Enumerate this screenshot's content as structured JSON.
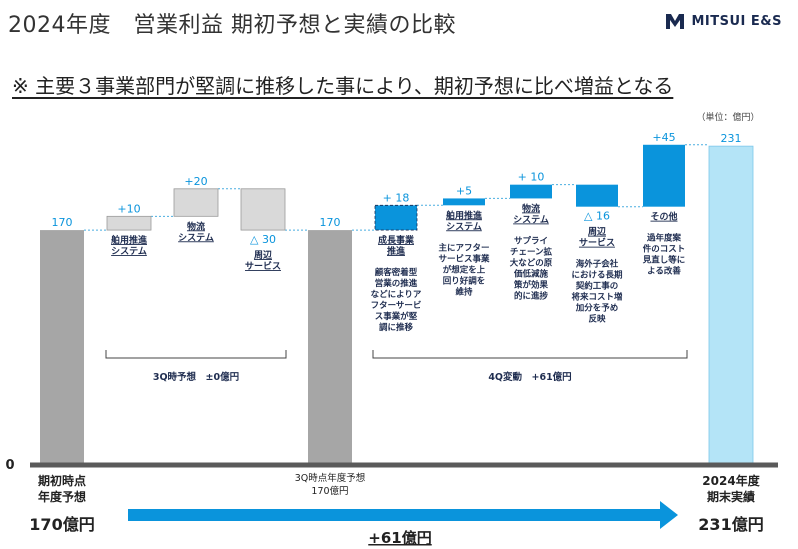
{
  "header": {
    "title": "2024年度　営業利益 期初予想と実績の比較",
    "logo_text": "MITSUI E&S",
    "subtitle": "※ 主要３事業部門が堅調に推移した事により、期初予想に比べ増益となる"
  },
  "colors": {
    "total_bar": "#a6a6a6",
    "final_bar": "#b4e4f7",
    "pos_3q": "#d9d9d9",
    "neg_3q": "#d9d9d9",
    "bar_4q": "#0a94dc",
    "value_text": "#0a94dc",
    "axis": "#5a5a5a",
    "arrow": "#0a94dc"
  },
  "chart_data": {
    "type": "waterfall",
    "unit": "（単位：億円）",
    "ylim": [
      0,
      240
    ],
    "zero_label": "0",
    "bars": [
      {
        "id": "start",
        "kind": "total",
        "value": 170,
        "label": "170"
      },
      {
        "id": "ship",
        "kind": "delta",
        "phase": "3Q",
        "value": 10,
        "label": "+10",
        "name": "舶用推進\nシステム"
      },
      {
        "id": "logistics",
        "kind": "delta",
        "phase": "3Q",
        "value": 20,
        "label": "+20",
        "name": "物流\nシステム"
      },
      {
        "id": "peripheral",
        "kind": "delta",
        "phase": "3Q",
        "value": -30,
        "label": "△ 30",
        "name": "周辺\nサービス"
      },
      {
        "id": "q3",
        "kind": "total",
        "value": 170,
        "label": "170"
      },
      {
        "id": "growth",
        "kind": "delta",
        "phase": "4Q",
        "value": 18,
        "label": "+ 18",
        "name": "成長事業\n推進",
        "note": "顧客密着型\n営業の推進\nなどによりア\nフターサービ\nス事業が堅\n調に推移"
      },
      {
        "id": "ship4",
        "kind": "delta",
        "phase": "4Q",
        "value": 5,
        "label": "+5",
        "name": "舶用推進\nシステム",
        "note": "主にアフター\nサービス事業\nが想定を上\n回り好調を\n維持"
      },
      {
        "id": "logistics4",
        "kind": "delta",
        "phase": "4Q",
        "value": 10,
        "label": "+ 10",
        "name": "物流\nシステム",
        "note": "サプライ\nチェーン拡\n大などの原\n価低減施\n策が効果\n的に進捗"
      },
      {
        "id": "peripheral4",
        "kind": "delta",
        "phase": "4Q",
        "value": -16,
        "label": "△ 16",
        "name": "周辺\nサービス",
        "note": "海外子会社\nにおける長期\n契約工事の\n将来コスト増\n加分を予め\n反映"
      },
      {
        "id": "other",
        "kind": "delta",
        "phase": "4Q",
        "value": 45,
        "label": "+45",
        "name": "その他",
        "note": "過年度案\n件のコスト\n見直し等に\nよる改善"
      },
      {
        "id": "final",
        "kind": "total",
        "value": 231,
        "label": "231"
      }
    ],
    "bottom_labels": {
      "start_line1": "期初時点",
      "start_line2": "年度予想",
      "start_value": "170億円",
      "q3_line1": "3Q時点年度予想",
      "q3_line2": "170億円",
      "final_line1": "2024年度",
      "final_line2": "期末実績",
      "final_value": "231億円"
    },
    "brackets": {
      "q3_label": "3Q時予想　±0億円",
      "q4_label": "4Q変動　+61億円"
    },
    "arrow_label": "+61億円"
  }
}
